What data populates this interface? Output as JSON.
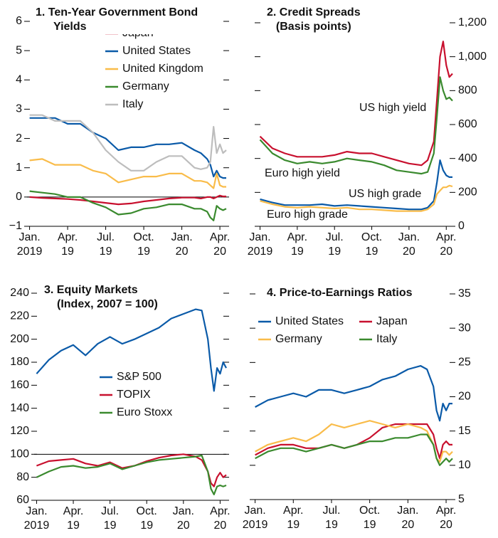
{
  "chart_data": [
    {
      "type": "line",
      "title": "1. Ten-Year Government Bond Yields",
      "legend": "upper center",
      "x": [
        0,
        1,
        2,
        3,
        4,
        5,
        6,
        7,
        8,
        9,
        10,
        11,
        12,
        13,
        13.5,
        14,
        14.25,
        14.5,
        14.75,
        15,
        15.25,
        15.5
      ],
      "xlim": [
        -0.2,
        15.5
      ],
      "xticks": [
        {
          "value": 0,
          "label": "Jan. 2019"
        },
        {
          "value": 3,
          "label": "Apr. 19"
        },
        {
          "value": 6,
          "label": "Jul. 19"
        },
        {
          "value": 9,
          "label": "Oct. 19"
        },
        {
          "value": 12,
          "label": "Jan. 20"
        },
        {
          "value": 15,
          "label": "Apr. 20"
        }
      ],
      "ylim": [
        -1,
        6
      ],
      "yticks": [
        {
          "value": -1,
          "label": "−1"
        },
        0,
        1,
        2,
        3,
        4,
        5,
        6
      ],
      "yaxis_position": "left",
      "reference_line": 0,
      "series": [
        {
          "name": "Japan",
          "color": "#c8102e",
          "values": [
            0,
            -0.03,
            -0.05,
            -0.07,
            -0.1,
            -0.15,
            -0.2,
            -0.25,
            -0.22,
            -0.15,
            -0.1,
            -0.05,
            -0.02,
            -0.02,
            -0.05,
            0,
            0,
            -0.05,
            0,
            0.05,
            0.02,
            0.02
          ]
        },
        {
          "name": "United States",
          "color": "#0a5aa8",
          "values": [
            2.7,
            2.7,
            2.7,
            2.5,
            2.5,
            2.2,
            2.0,
            1.6,
            1.7,
            1.7,
            1.8,
            1.8,
            1.85,
            1.6,
            1.5,
            1.3,
            1.1,
            0.7,
            0.9,
            0.7,
            0.65,
            0.65
          ]
        },
        {
          "name": "United Kingdom",
          "color": "#f9bc4a",
          "values": [
            1.25,
            1.3,
            1.1,
            1.1,
            1.1,
            0.9,
            0.8,
            0.5,
            0.6,
            0.7,
            0.7,
            0.8,
            0.8,
            0.55,
            0.55,
            0.5,
            0.4,
            0.3,
            0.8,
            0.4,
            0.35,
            0.35
          ]
        },
        {
          "name": "Germany",
          "color": "#3a8a2e",
          "values": [
            0.2,
            0.15,
            0.1,
            0,
            0,
            -0.2,
            -0.35,
            -0.6,
            -0.55,
            -0.4,
            -0.35,
            -0.25,
            -0.25,
            -0.4,
            -0.4,
            -0.5,
            -0.7,
            -0.8,
            -0.3,
            -0.4,
            -0.45,
            -0.4
          ]
        },
        {
          "name": "Italy",
          "color": "#bdbdbd",
          "values": [
            2.8,
            2.8,
            2.6,
            2.6,
            2.6,
            2.2,
            1.6,
            1.2,
            0.9,
            0.9,
            1.2,
            1.4,
            1.4,
            1.0,
            0.95,
            1.0,
            1.2,
            2.4,
            1.5,
            1.8,
            1.5,
            1.6
          ]
        }
      ]
    },
    {
      "type": "line",
      "title": "2. Credit Spreads",
      "subtitle": "(Basis points)",
      "legend": "inline",
      "x": [
        0,
        1,
        2,
        3,
        4,
        5,
        6,
        7,
        8,
        9,
        10,
        11,
        12,
        13,
        13.5,
        14,
        14.25,
        14.5,
        14.75,
        15,
        15.25,
        15.5
      ],
      "xlim": [
        -0.2,
        15.5
      ],
      "xticks": [
        {
          "value": 0,
          "label": "Jan. 2019"
        },
        {
          "value": 3,
          "label": "Apr. 19"
        },
        {
          "value": 6,
          "label": "Jul. 19"
        },
        {
          "value": 9,
          "label": "Oct. 19"
        },
        {
          "value": 12,
          "label": "Jan. 20"
        },
        {
          "value": 15,
          "label": "Apr. 20"
        }
      ],
      "ylim": [
        0,
        1200
      ],
      "yticks": [
        0,
        200,
        400,
        600,
        800,
        {
          "value": 1000,
          "label": "1,000"
        },
        {
          "value": 1200,
          "label": "1,200"
        }
      ],
      "yaxis_position": "right",
      "series": [
        {
          "name": "US high yield",
          "color": "#c8102e",
          "values": [
            530,
            460,
            430,
            410,
            410,
            410,
            420,
            440,
            430,
            430,
            410,
            390,
            370,
            360,
            390,
            500,
            750,
            1000,
            1090,
            950,
            880,
            900
          ]
        },
        {
          "name": "Euro high yield",
          "color": "#3a8a2e",
          "values": [
            510,
            430,
            390,
            370,
            380,
            370,
            380,
            400,
            390,
            380,
            360,
            330,
            320,
            310,
            320,
            430,
            650,
            880,
            800,
            750,
            760,
            740
          ]
        },
        {
          "name": "US high grade",
          "color": "#0a5aa8",
          "values": [
            160,
            140,
            125,
            125,
            125,
            130,
            120,
            125,
            120,
            115,
            110,
            105,
            100,
            100,
            110,
            150,
            260,
            390,
            330,
            300,
            290,
            290
          ]
        },
        {
          "name": "Euro high grade",
          "color": "#f9bc4a",
          "values": [
            150,
            130,
            115,
            110,
            115,
            110,
            105,
            110,
            100,
            100,
            95,
            90,
            90,
            90,
            100,
            130,
            190,
            210,
            230,
            230,
            240,
            235
          ]
        }
      ]
    },
    {
      "type": "line",
      "title": "3. Equity Markets",
      "subtitle": "(Index, 2007 = 100)",
      "legend": "center",
      "x": [
        0,
        1,
        2,
        3,
        4,
        5,
        6,
        7,
        8,
        9,
        10,
        11,
        12,
        13,
        13.5,
        14,
        14.25,
        14.5,
        14.75,
        15,
        15.25,
        15.5
      ],
      "xlim": [
        -0.2,
        15.5
      ],
      "xticks": [
        {
          "value": 0,
          "label": "Jan. 2019"
        },
        {
          "value": 3,
          "label": "Apr. 19"
        },
        {
          "value": 6,
          "label": "Jul. 19"
        },
        {
          "value": 9,
          "label": "Oct. 19"
        },
        {
          "value": 12,
          "label": "Jan. 20"
        },
        {
          "value": 15,
          "label": "Apr. 20"
        }
      ],
      "ylim": [
        60,
        240
      ],
      "yticks": [
        60,
        80,
        100,
        120,
        140,
        160,
        180,
        200,
        220,
        240
      ],
      "yaxis_position": "left",
      "reference_line": 100,
      "series": [
        {
          "name": "S&P 500",
          "color": "#0a5aa8",
          "values": [
            170,
            182,
            190,
            195,
            186,
            196,
            202,
            196,
            200,
            205,
            210,
            218,
            222,
            226,
            225,
            200,
            175,
            155,
            175,
            170,
            180,
            175
          ]
        },
        {
          "name": "TOPIX",
          "color": "#c8102e",
          "values": [
            90,
            94,
            95,
            96,
            92,
            90,
            93,
            88,
            90,
            94,
            97,
            99,
            100,
            98,
            95,
            85,
            75,
            72,
            80,
            84,
            80,
            82
          ]
        },
        {
          "name": "Euro Stoxx",
          "color": "#3a8a2e",
          "values": [
            80,
            85,
            89,
            90,
            88,
            89,
            92,
            87,
            90,
            93,
            95,
            96,
            97,
            98,
            99,
            85,
            70,
            65,
            72,
            73,
            72,
            73
          ]
        }
      ]
    },
    {
      "type": "line",
      "title": "4. Price-to-Earnings Ratios",
      "legend": "upper center",
      "x": [
        0,
        1,
        2,
        3,
        4,
        5,
        6,
        7,
        8,
        9,
        10,
        11,
        12,
        13,
        13.5,
        14,
        14.25,
        14.5,
        14.75,
        15,
        15.25,
        15.5
      ],
      "xlim": [
        -0.2,
        15.5
      ],
      "xticks": [
        {
          "value": 0,
          "label": "Jan. 2019"
        },
        {
          "value": 3,
          "label": "Apr. 19"
        },
        {
          "value": 6,
          "label": "Jul. 19"
        },
        {
          "value": 9,
          "label": "Oct. 19"
        },
        {
          "value": 12,
          "label": "Jan. 20"
        },
        {
          "value": 15,
          "label": "Apr. 20"
        }
      ],
      "ylim": [
        5,
        35
      ],
      "yticks": [
        5,
        10,
        15,
        20,
        25,
        30,
        35
      ],
      "yaxis_position": "right",
      "series": [
        {
          "name": "United States",
          "color": "#0a5aa8",
          "values": [
            18.5,
            19.5,
            20,
            20.5,
            20,
            21,
            21,
            20.5,
            21,
            21.5,
            22.5,
            23,
            24,
            24.5,
            24,
            21.5,
            18,
            16.5,
            19,
            18,
            19,
            19
          ]
        },
        {
          "name": "Japan",
          "color": "#c8102e",
          "values": [
            11.5,
            12.5,
            13,
            13,
            12.5,
            12.5,
            13,
            12.5,
            13,
            14,
            15.5,
            16,
            16,
            16,
            16,
            14.5,
            12.5,
            11,
            13,
            13.5,
            13,
            13
          ]
        },
        {
          "name": "Germany",
          "color": "#f9bc4a",
          "values": [
            12,
            13,
            13.5,
            14,
            13.5,
            14.5,
            16,
            15.5,
            16,
            16.5,
            16,
            15.5,
            16,
            15.5,
            15,
            13,
            11,
            10.5,
            12,
            12,
            11.5,
            12
          ]
        },
        {
          "name": "Italy",
          "color": "#3a8a2e",
          "values": [
            11,
            12,
            12.5,
            12.5,
            12,
            12.5,
            13,
            12.5,
            13,
            13.5,
            13.5,
            14,
            14,
            14.5,
            14.5,
            13,
            11,
            10,
            10.5,
            11,
            10.5,
            11
          ]
        }
      ]
    }
  ]
}
